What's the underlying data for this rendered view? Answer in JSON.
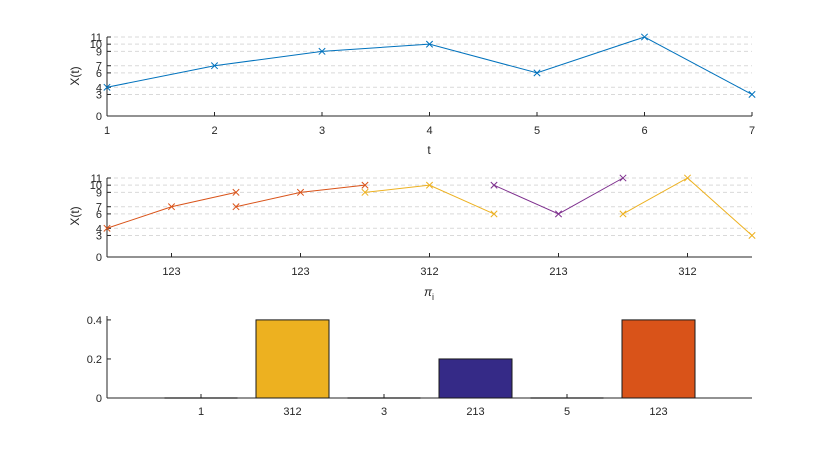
{
  "chart_data": [
    {
      "id": "top",
      "type": "line",
      "x": [
        1,
        2,
        3,
        4,
        5,
        6,
        7
      ],
      "series": [
        {
          "values": [
            4,
            7,
            9,
            10,
            6,
            11,
            3
          ],
          "color": "#0072BD",
          "marker": "x"
        }
      ],
      "xlabel": "t",
      "ylabel": "X(t)",
      "xticks": [
        "1",
        "2",
        "3",
        "4",
        "5",
        "6",
        "7"
      ],
      "yticks": [
        "0",
        "3",
        "4",
        "6",
        "7",
        "9",
        "10",
        "11"
      ],
      "xlim": [
        1,
        7
      ],
      "ylim": [
        0,
        11
      ],
      "grid": "horizontal-dashed"
    },
    {
      "id": "middle",
      "type": "line",
      "segments": [
        {
          "pattern": "123",
          "x": [
            1,
            2,
            3
          ],
          "values": [
            4,
            7,
            9
          ],
          "color": "#D95319"
        },
        {
          "pattern": "123",
          "x": [
            3,
            4,
            5
          ],
          "values": [
            7,
            9,
            10
          ],
          "color": "#D95319"
        },
        {
          "pattern": "312",
          "x": [
            5,
            6,
            7
          ],
          "values": [
            9,
            10,
            6
          ],
          "color": "#EDB120"
        },
        {
          "pattern": "213",
          "x": [
            7,
            8,
            9
          ],
          "values": [
            10,
            6,
            11
          ],
          "color": "#7E2F8E"
        },
        {
          "pattern": "312",
          "x": [
            9,
            10,
            11
          ],
          "values": [
            6,
            11,
            3
          ],
          "color": "#EDB120"
        }
      ],
      "xlabel_main": "π",
      "xlabel_sub": "i",
      "ylabel": "X(t)",
      "xticks": [
        {
          "at": 2,
          "label": "123"
        },
        {
          "at": 4,
          "label": "123"
        },
        {
          "at": 6,
          "label": "312"
        },
        {
          "at": 8,
          "label": "213"
        },
        {
          "at": 10,
          "label": "312"
        }
      ],
      "yticks": [
        "0",
        "3",
        "4",
        "6",
        "7",
        "9",
        "10",
        "11"
      ],
      "xlim": [
        1,
        11
      ],
      "ylim": [
        0,
        11
      ],
      "grid": "horizontal-dashed"
    },
    {
      "id": "bottom",
      "type": "bar",
      "categories": [
        "1",
        "312",
        "3",
        "213",
        "5",
        "123"
      ],
      "values": [
        0,
        0.4,
        0,
        0.2,
        0,
        0.4
      ],
      "colors": [
        "#3B3B8F",
        "#EDB120",
        "#3B3B8F",
        "#352A87",
        "#3B3B8F",
        "#D95319"
      ],
      "yticks": [
        "0",
        "0.2",
        "0.4"
      ],
      "ylim": [
        0,
        0.42
      ]
    }
  ]
}
